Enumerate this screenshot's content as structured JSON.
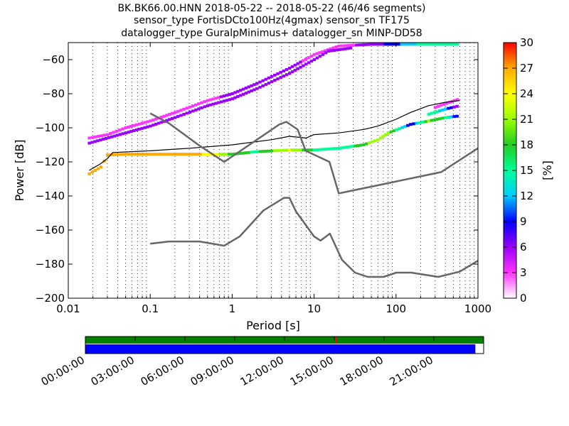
{
  "title_lines": [
    "BK.BK66.00.HNN   2018-05-22 -- 2018-05-22  (46/46 segments)",
    "sensor_type FortisDCto100Hz(4gmax) sensor_sn TF175",
    "datalogger_type GuralpMinimus+ datalogger_sn MINP-DD58"
  ],
  "chart_data": [
    {
      "type": "heatmap",
      "xlabel": "Period [s]",
      "ylabel": "Power [dB]",
      "xscale": "log",
      "xlim": [
        0.01,
        1000
      ],
      "ylim": [
        -200,
        -50
      ],
      "x_ticks": [
        {
          "value": 0.01,
          "label": "0.01"
        },
        {
          "value": 0.1,
          "label": "0.1"
        },
        {
          "value": 1,
          "label": "1"
        },
        {
          "value": 10,
          "label": "10"
        },
        {
          "value": 100,
          "label": "100"
        },
        {
          "value": 1000,
          "label": "1000"
        }
      ],
      "y_ticks": [
        {
          "value": -60,
          "label": "−60"
        },
        {
          "value": -80,
          "label": "−80"
        },
        {
          "value": -100,
          "label": "−100"
        },
        {
          "value": -120,
          "label": "−120"
        },
        {
          "value": -140,
          "label": "−140"
        },
        {
          "value": -160,
          "label": "−160"
        },
        {
          "value": -180,
          "label": "−180"
        },
        {
          "value": -200,
          "label": "−200"
        }
      ],
      "grid": "dotted vertical at minor log ticks",
      "colorbar": {
        "label": "[%]",
        "range": [
          0,
          30
        ],
        "ticks": [
          {
            "value": 0,
            "label": "0"
          },
          {
            "value": 3,
            "label": "3"
          },
          {
            "value": 6,
            "label": "6"
          },
          {
            "value": 9,
            "label": "9"
          },
          {
            "value": 12,
            "label": "12"
          },
          {
            "value": 15,
            "label": "15"
          },
          {
            "value": 18,
            "label": "18"
          },
          {
            "value": 21,
            "label": "21"
          },
          {
            "value": 24,
            "label": "24"
          },
          {
            "value": 27,
            "label": "27"
          },
          {
            "value": 30,
            "label": "30"
          }
        ],
        "colors": [
          "#ffffff",
          "#ff33ff",
          "#9900ff",
          "#0000ff",
          "#00ccff",
          "#00ff99",
          "#22cc22",
          "#99ff00",
          "#ffff00",
          "#ffaa00",
          "#ff0000"
        ]
      },
      "density_bands": [
        {
          "name": "upper",
          "points": [
            [
              0.018,
              -106
            ],
            [
              0.03,
              -104
            ],
            [
              0.05,
              -100
            ],
            [
              0.1,
              -96
            ],
            [
              0.2,
              -91
            ],
            [
              0.5,
              -84
            ],
            [
              1,
              -80
            ],
            [
              2,
              -74
            ],
            [
              5,
              -65
            ],
            [
              10,
              -57
            ],
            [
              20,
              -52
            ],
            [
              50,
              -51
            ],
            [
              100,
              -51
            ],
            [
              200,
              -51
            ],
            [
              600,
              -51
            ]
          ],
          "values": [
            3,
            3,
            4,
            4,
            4,
            4,
            5,
            5,
            5,
            4,
            4,
            5,
            10,
            14,
            15
          ]
        },
        {
          "name": "upper-inner",
          "points": [
            [
              0.018,
              -109
            ],
            [
              0.05,
              -103
            ],
            [
              0.1,
              -99
            ],
            [
              0.2,
              -94
            ],
            [
              0.5,
              -87
            ],
            [
              1,
              -83
            ],
            [
              2,
              -77
            ],
            [
              5,
              -68
            ],
            [
              10,
              -60
            ],
            [
              15,
              -55
            ],
            [
              30,
              -53
            ]
          ],
          "values": [
            6,
            6,
            6,
            6,
            6,
            6,
            6,
            6,
            6,
            6,
            5
          ]
        },
        {
          "name": "lower",
          "points": [
            [
              0.018,
              -127
            ],
            [
              0.025,
              -123
            ],
            [
              0.03,
              -116
            ],
            [
              0.05,
              -115.5
            ],
            [
              0.1,
              -115.5
            ],
            [
              0.3,
              -115.5
            ],
            [
              0.6,
              -115.5
            ],
            [
              1,
              -115.5
            ],
            [
              2,
              -114
            ],
            [
              5,
              -113
            ],
            [
              10,
              -113
            ],
            [
              20,
              -112
            ],
            [
              40,
              -110
            ],
            [
              60,
              -107
            ],
            [
              80,
              -103
            ],
            [
              150,
              -98
            ],
            [
              250,
              -96
            ],
            [
              400,
              -94
            ],
            [
              600,
              -93
            ]
          ],
          "values": [
            28,
            28,
            28,
            28,
            28,
            27,
            24,
            18,
            16,
            23,
            16,
            14,
            18,
            22,
            20,
            8,
            20,
            16,
            6
          ]
        },
        {
          "name": "lower-upper-branch",
          "points": [
            [
              250,
              -92
            ],
            [
              400,
              -89
            ],
            [
              600,
              -87
            ]
          ],
          "values": [
            16,
            12,
            4
          ]
        },
        {
          "name": "lower-top-branch",
          "points": [
            [
              300,
              -88
            ],
            [
              450,
              -85
            ],
            [
              600,
              -83
            ]
          ],
          "values": [
            3,
            4,
            4
          ]
        }
      ],
      "series": [
        {
          "kind": "mean",
          "color": "#000000",
          "points": [
            [
              0.018,
              -125
            ],
            [
              0.025,
              -121
            ],
            [
              0.03,
              -118
            ],
            [
              0.035,
              -114.5
            ],
            [
              0.1,
              -113.5
            ],
            [
              0.3,
              -112
            ],
            [
              1,
              -110
            ],
            [
              3,
              -107
            ],
            [
              5,
              -105
            ],
            [
              8,
              -106
            ],
            [
              10,
              -104
            ],
            [
              20,
              -103
            ],
            [
              40,
              -101
            ],
            [
              60,
              -99
            ],
            [
              100,
              -95
            ],
            [
              150,
              -91
            ],
            [
              250,
              -87
            ],
            [
              400,
              -85
            ],
            [
              600,
              -84
            ]
          ]
        },
        {
          "kind": "NHNM",
          "color": "#666666",
          "points": [
            [
              0.1,
              -91.5
            ],
            [
              0.17,
              -97.4
            ],
            [
              0.4,
              -110.5
            ],
            [
              0.8,
              -120
            ],
            [
              3.8,
              -97.9
            ],
            [
              4.6,
              -96.5
            ],
            [
              6.3,
              -101
            ],
            [
              7.9,
              -113.5
            ],
            [
              15.4,
              -120
            ],
            [
              20,
              -138.5
            ],
            [
              354.8,
              -126
            ],
            [
              1000,
              -112
            ]
          ]
        },
        {
          "kind": "NLNM",
          "color": "#666666",
          "points": [
            [
              0.1,
              -168
            ],
            [
              0.17,
              -166.7
            ],
            [
              0.4,
              -166.7
            ],
            [
              0.8,
              -169.2
            ],
            [
              1.24,
              -163.7
            ],
            [
              2.4,
              -148.6
            ],
            [
              4.3,
              -141.1
            ],
            [
              5,
              -141.1
            ],
            [
              6,
              -149
            ],
            [
              10,
              -163.8
            ],
            [
              12,
              -166.2
            ],
            [
              15.6,
              -162.1
            ],
            [
              21.9,
              -177.5
            ],
            [
              31.6,
              -185
            ],
            [
              45,
              -187.5
            ],
            [
              70,
              -187.5
            ],
            [
              101,
              -185
            ],
            [
              154,
              -185
            ],
            [
              328,
              -187.5
            ],
            [
              600,
              -184.4
            ],
            [
              1000,
              -178
            ]
          ]
        }
      ]
    },
    {
      "type": "timeline",
      "tick_labels": [
        "00:00:00",
        "03:00:00",
        "06:00:00",
        "09:00:00",
        "12:00:00",
        "15:00:00",
        "18:00:00",
        "21:00:00"
      ],
      "range_hours": [
        0,
        24
      ],
      "bars": [
        {
          "name": "data",
          "color": "#008000",
          "range_hours": [
            0,
            24
          ]
        },
        {
          "name": "psd",
          "color": "#0000ff",
          "range_hours": [
            0,
            23.5
          ]
        }
      ],
      "marker_hours": 15.1,
      "marker_color": "#ff0000"
    }
  ]
}
